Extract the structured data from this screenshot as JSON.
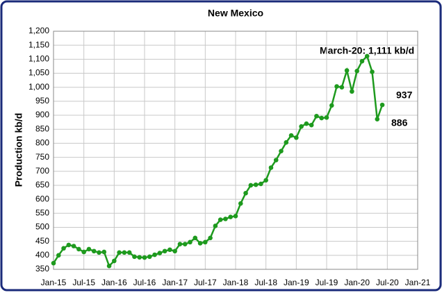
{
  "chart_data": {
    "type": "line",
    "title": "New Mexico",
    "y_label": "Production kb/d",
    "categories": [
      "Jan-15",
      null,
      null,
      null,
      null,
      null,
      "Jul-15",
      null,
      null,
      null,
      null,
      null,
      "Jan-16",
      null,
      null,
      null,
      null,
      null,
      "Jul-16",
      null,
      null,
      null,
      null,
      null,
      "Jan-17",
      null,
      null,
      null,
      null,
      null,
      "Jul-17",
      null,
      null,
      null,
      null,
      null,
      "Jan-18",
      null,
      null,
      null,
      null,
      null,
      "Jul-18",
      null,
      null,
      null,
      null,
      null,
      "Jan-19",
      null,
      null,
      null,
      null,
      null,
      "Jul-19",
      null,
      null,
      null,
      null,
      null,
      "Jan-20",
      null,
      null,
      null,
      null,
      null,
      "Jul-20",
      null,
      null,
      null,
      null,
      null,
      "Jan-21"
    ],
    "series": [
      {
        "name": "New Mexico",
        "color": "#1e9a1e",
        "values": [
          372,
          400,
          425,
          437,
          433,
          422,
          412,
          422,
          415,
          410,
          412,
          362,
          380,
          410,
          410,
          410,
          395,
          393,
          392,
          395,
          402,
          408,
          415,
          420,
          415,
          440,
          440,
          447,
          462,
          443,
          447,
          462,
          505,
          527,
          530,
          537,
          540,
          585,
          622,
          650,
          652,
          655,
          668,
          713,
          740,
          772,
          803,
          828,
          820,
          860,
          870,
          865,
          897,
          890,
          892,
          935,
          1003,
          1000,
          1060,
          985,
          1058,
          1093,
          1111,
          1055,
          886,
          937,
          null,
          null,
          null,
          null,
          null,
          null,
          null
        ]
      }
    ],
    "ylim": [
      350,
      1200
    ],
    "yticks": [
      350,
      400,
      450,
      500,
      550,
      600,
      650,
      700,
      750,
      800,
      850,
      900,
      950,
      {
        "value": 1000,
        "label": "1,000"
      },
      {
        "value": 1050,
        "label": "1,050"
      },
      {
        "value": 1100,
        "label": "1,100"
      },
      {
        "value": 1150,
        "label": "1,150"
      },
      {
        "value": 1200,
        "label": "1,200"
      }
    ],
    "grid": true,
    "annotations": [
      "March-20: 1,111 kb/d",
      "937",
      "886"
    ]
  }
}
